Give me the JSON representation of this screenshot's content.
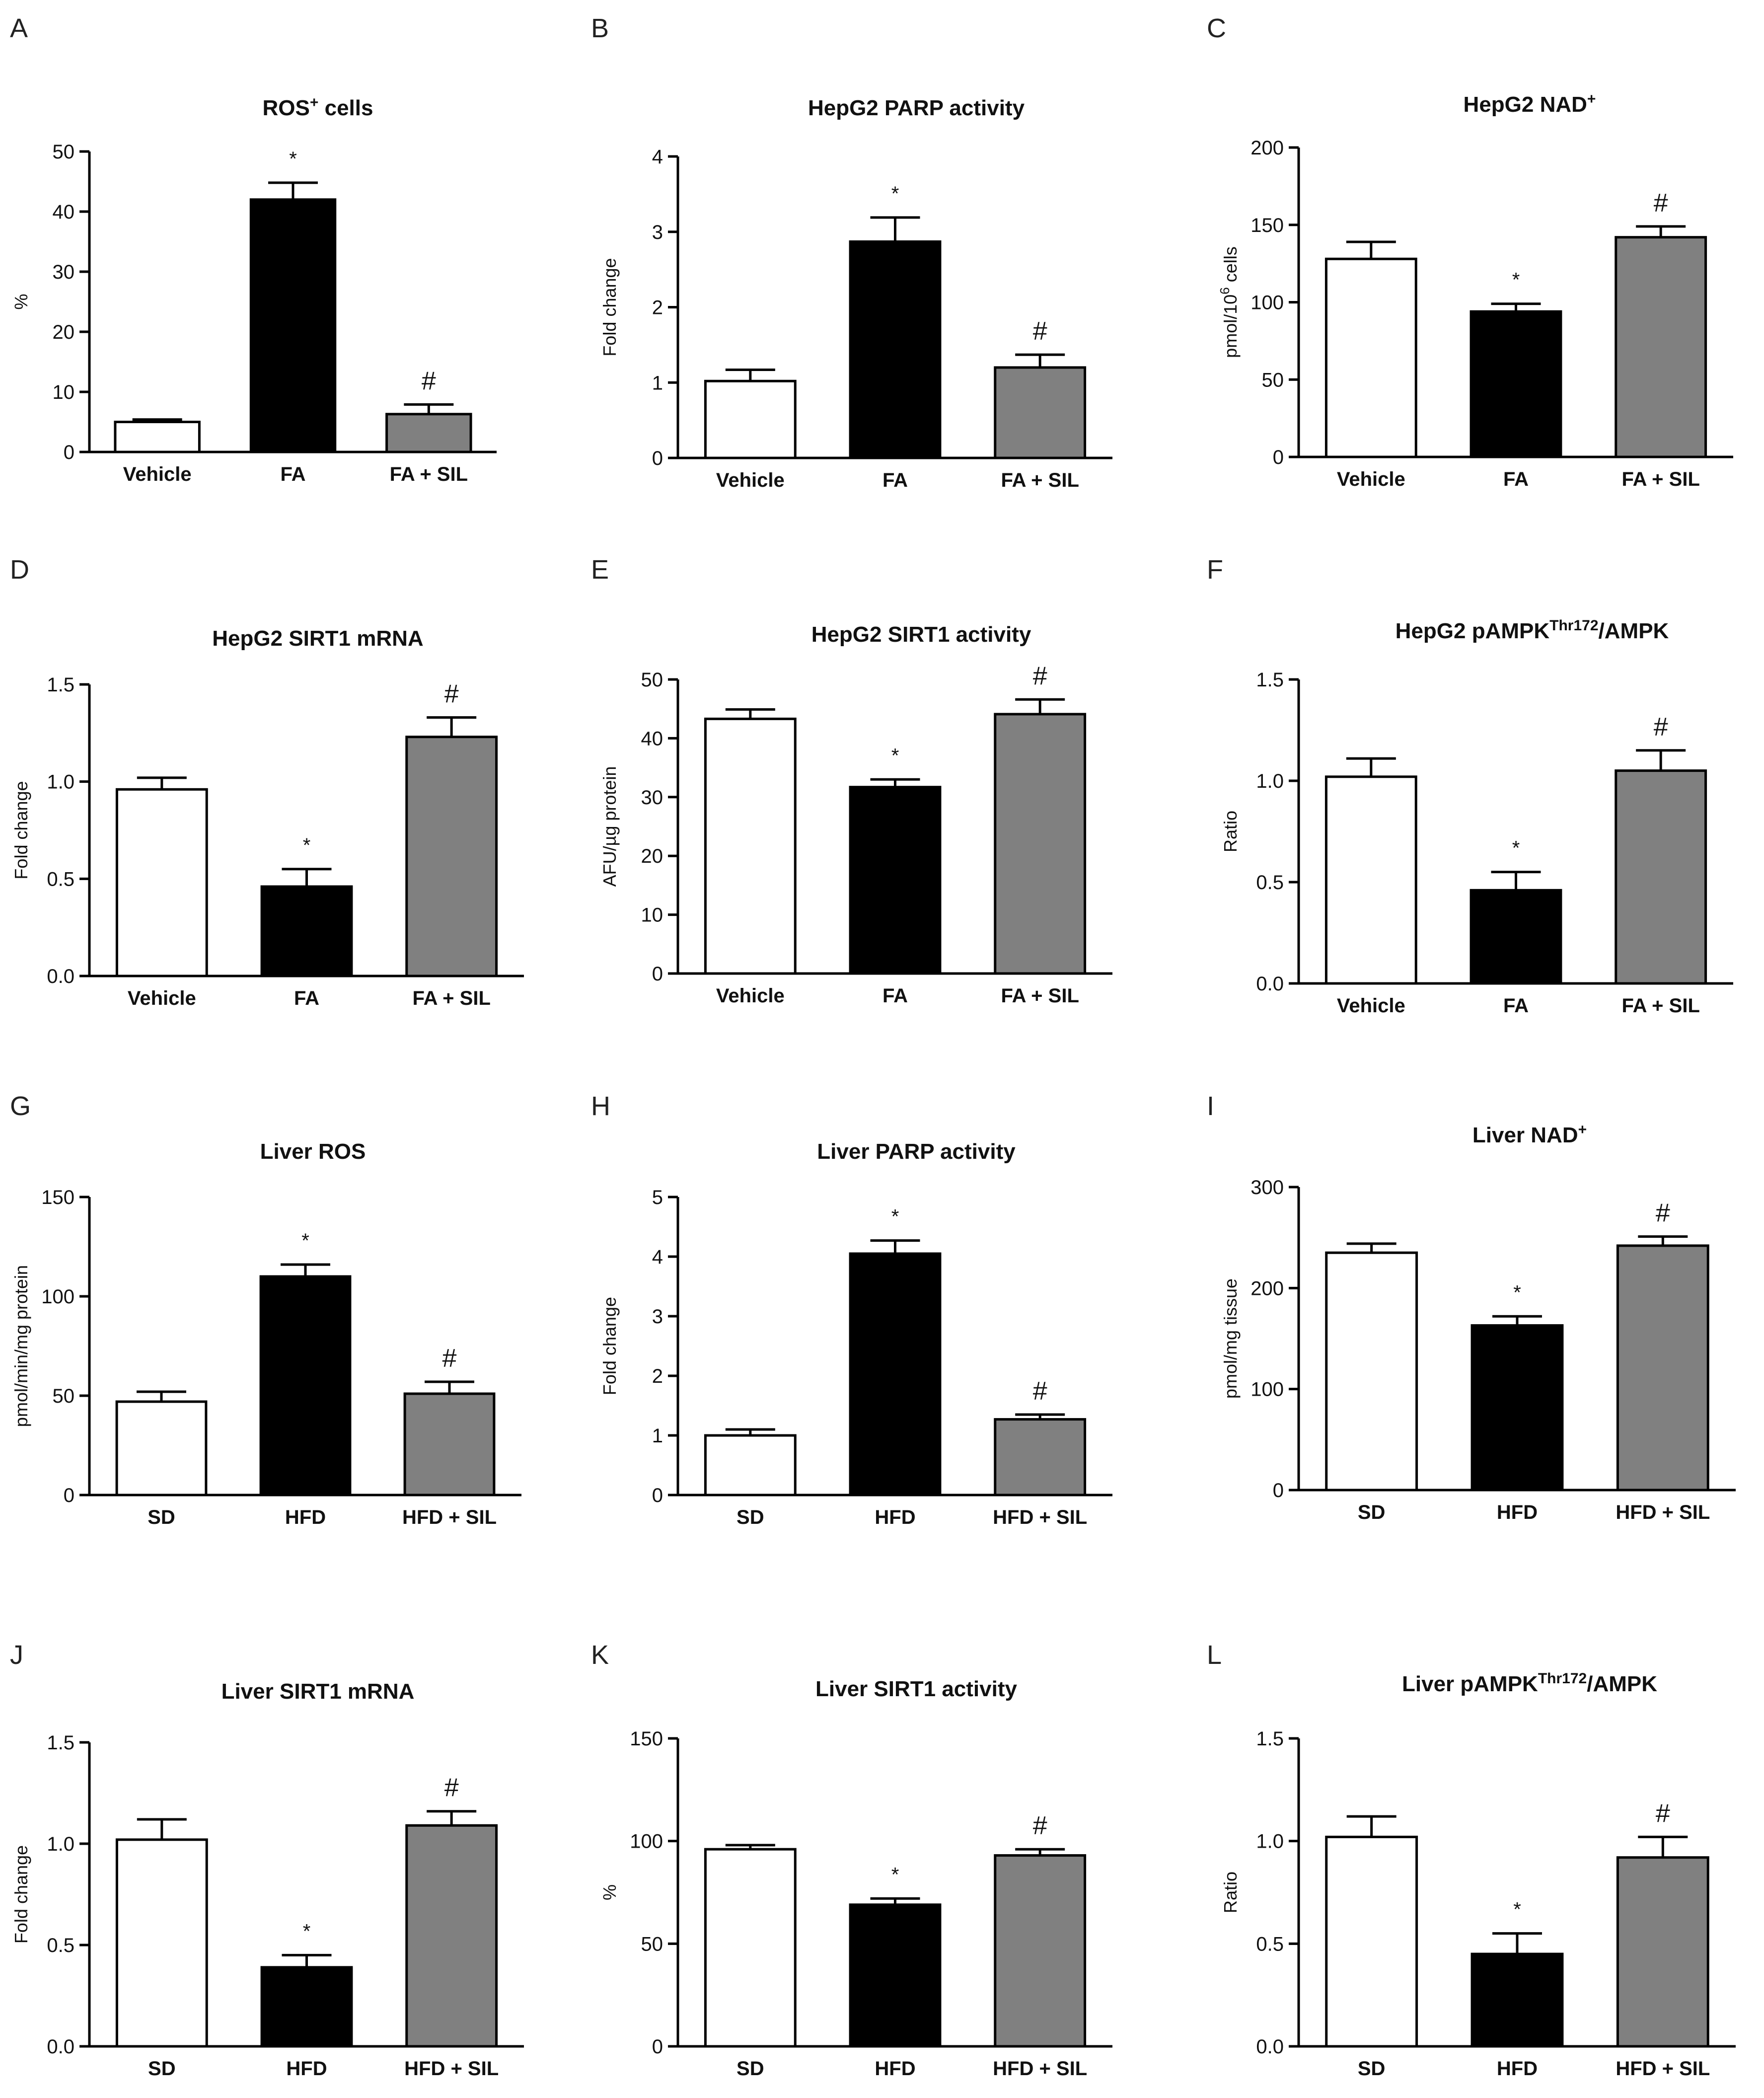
{
  "chart_data": [
    {
      "panel": "A",
      "type": "bar",
      "title": "ROS",
      "title_sup": "+",
      "title_after": " cells",
      "ylabel": "%",
      "ylabel_sup": "",
      "ylabel_after": "",
      "ylim": [
        0,
        50
      ],
      "yticks": [
        "0",
        "10",
        "20",
        "30",
        "40",
        "50"
      ],
      "categories": [
        "Vehicle",
        "FA",
        "FA + SIL"
      ],
      "values": [
        5,
        42,
        6.3
      ],
      "errors": [
        0.4,
        2.8,
        1.6
      ],
      "annotations": [
        "",
        "*",
        "#"
      ]
    },
    {
      "panel": "B",
      "type": "bar",
      "title": "HepG2 PARP activity",
      "title_sup": "",
      "title_after": "",
      "ylabel": "Fold change",
      "ylabel_sup": "",
      "ylabel_after": "",
      "ylim": [
        0,
        4
      ],
      "yticks": [
        "0",
        "1",
        "2",
        "3",
        "4"
      ],
      "categories": [
        "Vehicle",
        "FA",
        "FA + SIL"
      ],
      "values": [
        1.02,
        2.87,
        1.2
      ],
      "errors": [
        0.15,
        0.32,
        0.17
      ],
      "annotations": [
        "",
        "*",
        "#"
      ]
    },
    {
      "panel": "C",
      "type": "bar",
      "title": "HepG2 NAD",
      "title_sup": "+",
      "title_after": "",
      "ylabel": "pmol/10",
      "ylabel_sup": "6",
      "ylabel_after": " cells",
      "ylim": [
        0,
        200
      ],
      "yticks": [
        "0",
        "50",
        "100",
        "150",
        "200"
      ],
      "categories": [
        "Vehicle",
        "FA",
        "FA + SIL"
      ],
      "values": [
        128,
        94,
        142
      ],
      "errors": [
        11,
        5,
        7
      ],
      "annotations": [
        "",
        "*",
        "#"
      ]
    },
    {
      "panel": "D",
      "type": "bar",
      "title": "HepG2 SIRT1 mRNA",
      "title_sup": "",
      "title_after": "",
      "ylabel": "Fold change",
      "ylabel_sup": "",
      "ylabel_after": "",
      "ylim": [
        0,
        1.5
      ],
      "yticks": [
        "0.0",
        "0.5",
        "1.0",
        "1.5"
      ],
      "categories": [
        "Vehicle",
        "FA",
        "FA + SIL"
      ],
      "values": [
        0.96,
        0.46,
        1.23
      ],
      "errors": [
        0.06,
        0.09,
        0.1
      ],
      "annotations": [
        "",
        "*",
        "#"
      ]
    },
    {
      "panel": "E",
      "type": "bar",
      "title": "HepG2 SIRT1 activity",
      "title_sup": "",
      "title_after": "",
      "ylabel": "AFU/µg protein",
      "ylabel_sup": "",
      "ylabel_after": "",
      "ylim": [
        0,
        50
      ],
      "yticks": [
        "0",
        "10",
        "20",
        "30",
        "40",
        "50"
      ],
      "categories": [
        "Vehicle",
        "FA",
        "FA + SIL"
      ],
      "values": [
        43.3,
        31.7,
        44.1
      ],
      "errors": [
        1.6,
        1.3,
        2.5
      ],
      "annotations": [
        "",
        "*",
        "#"
      ]
    },
    {
      "panel": "F",
      "type": "bar",
      "title": "HepG2 pAMPK",
      "title_sup": "Thr172",
      "title_after": "/AMPK",
      "ylabel": "Ratio",
      "ylabel_sup": "",
      "ylabel_after": "",
      "ylim": [
        0,
        1.5
      ],
      "yticks": [
        "0.0",
        "0.5",
        "1.0",
        "1.5"
      ],
      "categories": [
        "Vehicle",
        "FA",
        "FA + SIL"
      ],
      "values": [
        1.02,
        0.46,
        1.05
      ],
      "errors": [
        0.09,
        0.09,
        0.1
      ],
      "annotations": [
        "",
        "*",
        "#"
      ]
    },
    {
      "panel": "G",
      "type": "bar",
      "title": "Liver ROS",
      "title_sup": "",
      "title_after": "",
      "ylabel": "pmol/min/mg protein",
      "ylabel_sup": "",
      "ylabel_after": "",
      "ylim": [
        0,
        150
      ],
      "yticks": [
        "0",
        "50",
        "100",
        "150"
      ],
      "categories": [
        "SD",
        "HFD",
        "HFD + SIL"
      ],
      "values": [
        47,
        110,
        51
      ],
      "errors": [
        5,
        6,
        6
      ],
      "annotations": [
        "",
        "*",
        "#"
      ]
    },
    {
      "panel": "H",
      "type": "bar",
      "title": "Liver PARP activity",
      "title_sup": "",
      "title_after": "",
      "ylabel": "Fold change",
      "ylabel_sup": "",
      "ylabel_after": "",
      "ylim": [
        0,
        5
      ],
      "yticks": [
        "0",
        "1",
        "2",
        "3",
        "4",
        "5"
      ],
      "categories": [
        "SD",
        "HFD",
        "HFD + SIL"
      ],
      "values": [
        1.0,
        4.05,
        1.27
      ],
      "errors": [
        0.1,
        0.22,
        0.08
      ],
      "annotations": [
        "",
        "*",
        "#"
      ]
    },
    {
      "panel": "I",
      "type": "bar",
      "title": "Liver NAD",
      "title_sup": "+",
      "title_after": "",
      "ylabel": "pmol/mg tissue",
      "ylabel_sup": "",
      "ylabel_after": "",
      "ylim": [
        0,
        300
      ],
      "yticks": [
        "0",
        "100",
        "200",
        "300"
      ],
      "categories": [
        "SD",
        "HFD",
        "HFD + SIL"
      ],
      "values": [
        235,
        163,
        242
      ],
      "errors": [
        9,
        9,
        9
      ],
      "annotations": [
        "",
        "*",
        "#"
      ]
    },
    {
      "panel": "J",
      "type": "bar",
      "title": "Liver SIRT1 mRNA",
      "title_sup": "",
      "title_after": "",
      "ylabel": "Fold change",
      "ylabel_sup": "",
      "ylabel_after": "",
      "ylim": [
        0,
        1.5
      ],
      "yticks": [
        "0.0",
        "0.5",
        "1.0",
        "1.5"
      ],
      "categories": [
        "SD",
        "HFD",
        "HFD + SIL"
      ],
      "values": [
        1.02,
        0.39,
        1.09
      ],
      "errors": [
        0.1,
        0.06,
        0.07
      ],
      "annotations": [
        "",
        "*",
        "#"
      ]
    },
    {
      "panel": "K",
      "type": "bar",
      "title": "Liver SIRT1 activity",
      "title_sup": "",
      "title_after": "",
      "ylabel": "%",
      "ylabel_sup": "",
      "ylabel_after": "",
      "ylim": [
        0,
        150
      ],
      "yticks": [
        "0",
        "50",
        "100",
        "150"
      ],
      "categories": [
        "SD",
        "HFD",
        "HFD + SIL"
      ],
      "values": [
        96,
        69,
        93
      ],
      "errors": [
        2,
        3,
        3
      ],
      "annotations": [
        "",
        "*",
        "#"
      ]
    },
    {
      "panel": "L",
      "type": "bar",
      "title": "Liver pAMPK",
      "title_sup": "Thr172",
      "title_after": "/AMPK",
      "ylabel": "Ratio",
      "ylabel_sup": "",
      "ylabel_after": "",
      "ylim": [
        0,
        1.5
      ],
      "yticks": [
        "0.0",
        "0.5",
        "1.0",
        "1.5"
      ],
      "categories": [
        "SD",
        "HFD",
        "HFD + SIL"
      ],
      "values": [
        1.02,
        0.45,
        0.92
      ],
      "errors": [
        0.1,
        0.1,
        0.1
      ],
      "annotations": [
        "",
        "*",
        "#"
      ]
    }
  ],
  "bar_colors": [
    "#ffffff",
    "#000000",
    "#808080"
  ],
  "axis_color": "#000000"
}
